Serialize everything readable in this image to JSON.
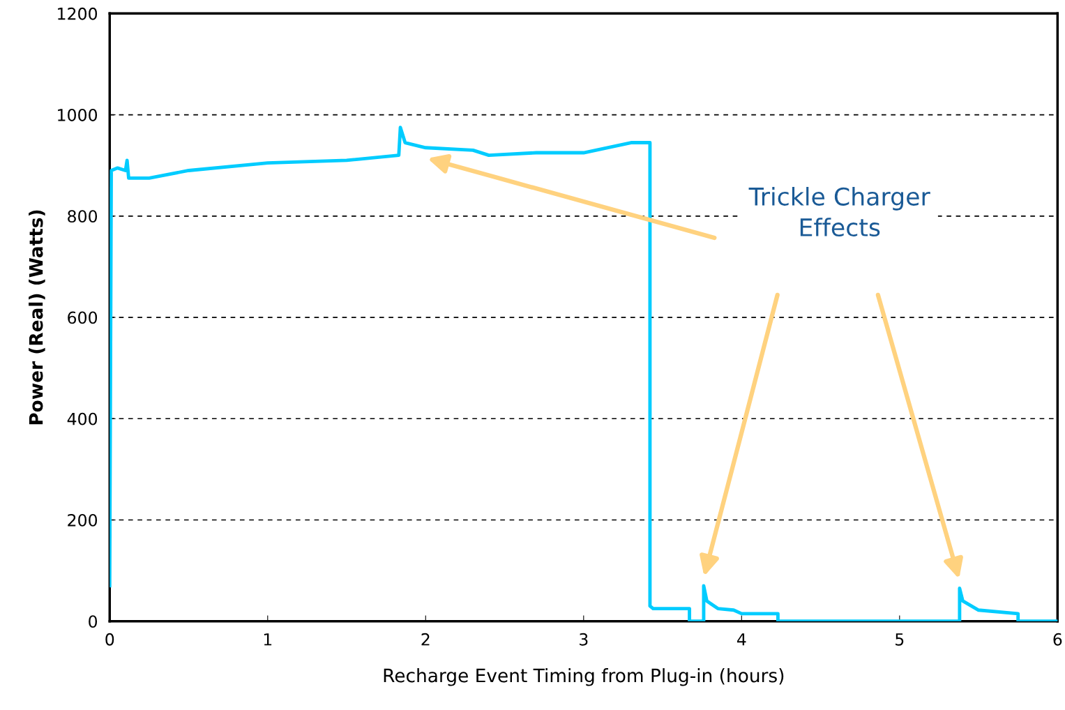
{
  "chart_data": {
    "type": "line",
    "xlabel": "Recharge Event Timing from Plug-in (hours)",
    "ylabel": "Power (Real) (Watts)",
    "series": [
      {
        "color": "#00ccff",
        "x": [
          0,
          0.01,
          0.05,
          0.1,
          0.11,
          0.12,
          0.25,
          0.5,
          1.0,
          1.5,
          1.83,
          1.84,
          1.87,
          2.0,
          2.3,
          2.4,
          2.7,
          3.0,
          3.3,
          3.42,
          3.42,
          3.44,
          3.67,
          3.67,
          3.76,
          3.76,
          3.78,
          3.85,
          3.95,
          4.0,
          4.1,
          4.23,
          4.23,
          5.38,
          5.38,
          5.4,
          5.5,
          5.75,
          5.75,
          6.0
        ],
        "values": [
          70,
          890,
          895,
          890,
          910,
          875,
          875,
          890,
          905,
          910,
          920,
          975,
          945,
          935,
          930,
          920,
          925,
          925,
          945,
          945,
          30,
          25,
          25,
          0,
          0,
          70,
          40,
          25,
          22,
          15,
          15,
          15,
          0,
          0,
          65,
          40,
          22,
          15,
          0,
          0
        ]
      }
    ],
    "xlim": [
      0,
      6
    ],
    "xticks": [
      0,
      1,
      2,
      3,
      4,
      5,
      6
    ],
    "ylim": [
      0,
      1200
    ],
    "yticks": [
      0,
      200,
      400,
      600,
      800,
      1000,
      1200
    ],
    "grid": "y",
    "line_style": "solid",
    "marker": "none",
    "annotations": [
      "Trickle Charger\nEffects"
    ]
  }
}
